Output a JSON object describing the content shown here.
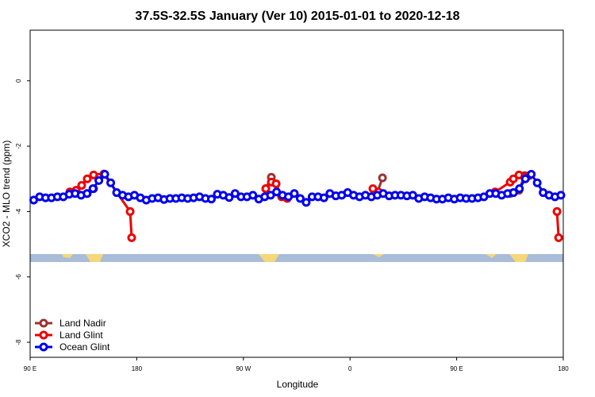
{
  "chart_data": {
    "type": "line",
    "title": "37.5S-32.5S January (Ver 10)   2015-01-01 to 2020-12-18",
    "xlabel": "Longitude",
    "ylabel": "XCO2 - MLO trend (ppm)",
    "xlim": [
      90,
      540
    ],
    "ylim": [
      -8.46,
      1.55
    ],
    "xticks": [
      {
        "value": 90,
        "label": "90 E"
      },
      {
        "value": 180,
        "label": "180"
      },
      {
        "value": 270,
        "label": "90 W"
      },
      {
        "value": 360,
        "label": "0"
      },
      {
        "value": 450,
        "label": "90 E"
      },
      {
        "value": 540,
        "label": "180"
      }
    ],
    "yticks": [
      0,
      -2,
      -4,
      -6,
      -8
    ],
    "legend": "bottom-left",
    "series": [
      {
        "name": "Land Nadir",
        "color": "#993333",
        "x": [
          138.2,
          143.6,
          null,
          288.9,
          293.6,
          null,
          382.7,
          387.4,
          null,
          495.2,
          502.6,
          507.3
        ],
        "values": [
          -3.45,
          -3.3,
          null,
          -3.3,
          -2.95,
          null,
          -3.45,
          -2.97,
          null,
          -3.45,
          -3.35,
          -2.9
        ]
      },
      {
        "name": "Land Glint",
        "color": "#ee0000",
        "x": [
          123.5,
          128.8,
          133.5,
          138.2,
          143.6,
          148.3,
          152.3,
          174.4,
          175.7,
          null,
          288.9,
          293.6,
          297.6,
          302.3,
          307.0,
          null,
          379.3,
          384.0,
          null,
          482.5,
          495.2,
          497.9,
          502.6,
          507.3,
          511.3,
          null,
          534.7,
          536.1
        ],
        "values": [
          -3.4,
          -3.35,
          -3.2,
          -3.0,
          -2.88,
          -2.95,
          -2.85,
          -4.0,
          -4.8,
          null,
          -3.3,
          -3.1,
          -3.15,
          -3.55,
          -3.6,
          null,
          -3.3,
          -3.4,
          null,
          -3.4,
          -3.1,
          -3.0,
          -2.88,
          -2.95,
          -2.9,
          null,
          -4.0,
          -4.8
        ]
      },
      {
        "name": "Ocean Glint",
        "color": "#0000ee",
        "x": [
          93,
          98,
          103,
          108,
          113,
          118,
          123,
          128,
          133,
          138,
          143,
          148,
          153,
          158,
          163,
          168,
          173,
          178,
          183,
          188,
          193,
          198,
          203,
          208,
          213,
          218,
          223,
          228,
          233,
          238,
          243,
          248,
          253,
          258,
          263,
          268,
          273,
          278,
          283,
          288,
          293,
          298,
          303,
          308,
          313,
          318,
          323,
          328,
          333,
          338,
          343,
          348,
          353,
          358,
          363,
          368,
          373,
          378,
          383,
          388,
          393,
          398,
          403,
          408,
          413,
          418,
          423,
          428,
          433,
          438,
          443,
          448,
          453,
          458,
          463,
          468,
          473,
          478,
          483,
          488,
          493,
          498,
          503,
          508,
          513,
          518,
          523,
          528,
          533,
          538
        ],
        "values": [
          -3.65,
          -3.55,
          -3.58,
          -3.58,
          -3.55,
          -3.55,
          -3.47,
          -3.45,
          -3.5,
          -3.45,
          -3.3,
          -3.05,
          -2.86,
          -3.12,
          -3.42,
          -3.5,
          -3.55,
          -3.5,
          -3.58,
          -3.65,
          -3.6,
          -3.58,
          -3.63,
          -3.6,
          -3.6,
          -3.58,
          -3.6,
          -3.58,
          -3.55,
          -3.6,
          -3.62,
          -3.47,
          -3.5,
          -3.57,
          -3.45,
          -3.55,
          -3.55,
          -3.5,
          -3.62,
          -3.55,
          -3.5,
          -3.4,
          -3.5,
          -3.55,
          -3.45,
          -3.6,
          -3.72,
          -3.55,
          -3.55,
          -3.58,
          -3.45,
          -3.52,
          -3.5,
          -3.42,
          -3.5,
          -3.55,
          -3.5,
          -3.55,
          -3.5,
          -3.45,
          -3.52,
          -3.5,
          -3.5,
          -3.52,
          -3.5,
          -3.6,
          -3.55,
          -3.58,
          -3.62,
          -3.62,
          -3.58,
          -3.62,
          -3.58,
          -3.6,
          -3.6,
          -3.58,
          -3.55,
          -3.45,
          -3.45,
          -3.5,
          -3.45,
          -3.42,
          -3.3,
          -3.0,
          -2.86,
          -3.12,
          -3.42,
          -3.5,
          -3.55,
          -3.5
        ]
      }
    ]
  }
}
